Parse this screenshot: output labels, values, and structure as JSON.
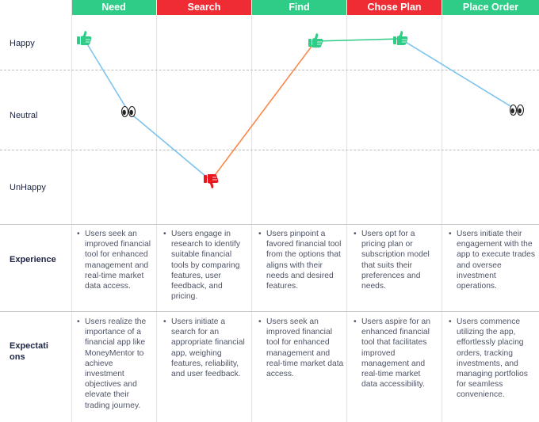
{
  "stages": [
    {
      "label": "Need",
      "color": "#2ecc86"
    },
    {
      "label": "Search",
      "color": "#ef2b33"
    },
    {
      "label": "Find",
      "color": "#2ecc86"
    },
    {
      "label": "Chose Plan",
      "color": "#ef2b33"
    },
    {
      "label": "Place Order",
      "color": "#2ecc86"
    }
  ],
  "emotion_levels": [
    "Happy",
    "Neutral",
    "UnHappy"
  ],
  "journey": [
    {
      "stage": "Need",
      "emotion": "Happy",
      "icon": "thumbs-up-icon"
    },
    {
      "stage": "Need",
      "emotion": "Neutral",
      "icon": "eyes-icon"
    },
    {
      "stage": "Search",
      "emotion": "UnHappy",
      "icon": "thumbs-down-icon"
    },
    {
      "stage": "Find",
      "emotion": "Happy",
      "icon": "thumbs-up-icon"
    },
    {
      "stage": "Chose Plan",
      "emotion": "Happy",
      "icon": "thumbs-up-icon"
    },
    {
      "stage": "Place Order",
      "emotion": "Neutral",
      "icon": "eyes-icon"
    }
  ],
  "line_colors": {
    "rising": "#2ecc86",
    "falling": "#7cc4ee",
    "recovering": "#f5894a"
  },
  "rows": {
    "experience": {
      "label": "Experience",
      "cells": [
        "Users seek an improved financial tool for enhanced management and real-time market data access.",
        "Users engage in research to identify suitable financial tools by comparing features, user feedback, and pricing.",
        "Users pinpoint a favored financial tool from the options that aligns with their needs and desired features.",
        "Users opt for a pricing plan or subscription model that suits their preferences and needs.",
        "Users initiate their engagement with the app to execute trades and oversee investment operations."
      ]
    },
    "expectations": {
      "label": "Expectati ons",
      "label_line1": "Expectati",
      "label_line2": "ons",
      "cells": [
        "Users realize the importance of a financial app like MoneyMentor to achieve investment objectives and elevate their trading journey.",
        "Users initiate a search for an appropriate financial app, weighing features, reliability, and user feedback.",
        "Users seek an improved financial tool for enhanced management and real-time market data access.",
        "Users aspire for an enhanced financial tool that facilitates improved management and real-time market data accessibility.",
        "Users commence utilizing the app, effortlessly placing orders, tracking investments, and managing portfolios for seamless convenience."
      ]
    }
  }
}
